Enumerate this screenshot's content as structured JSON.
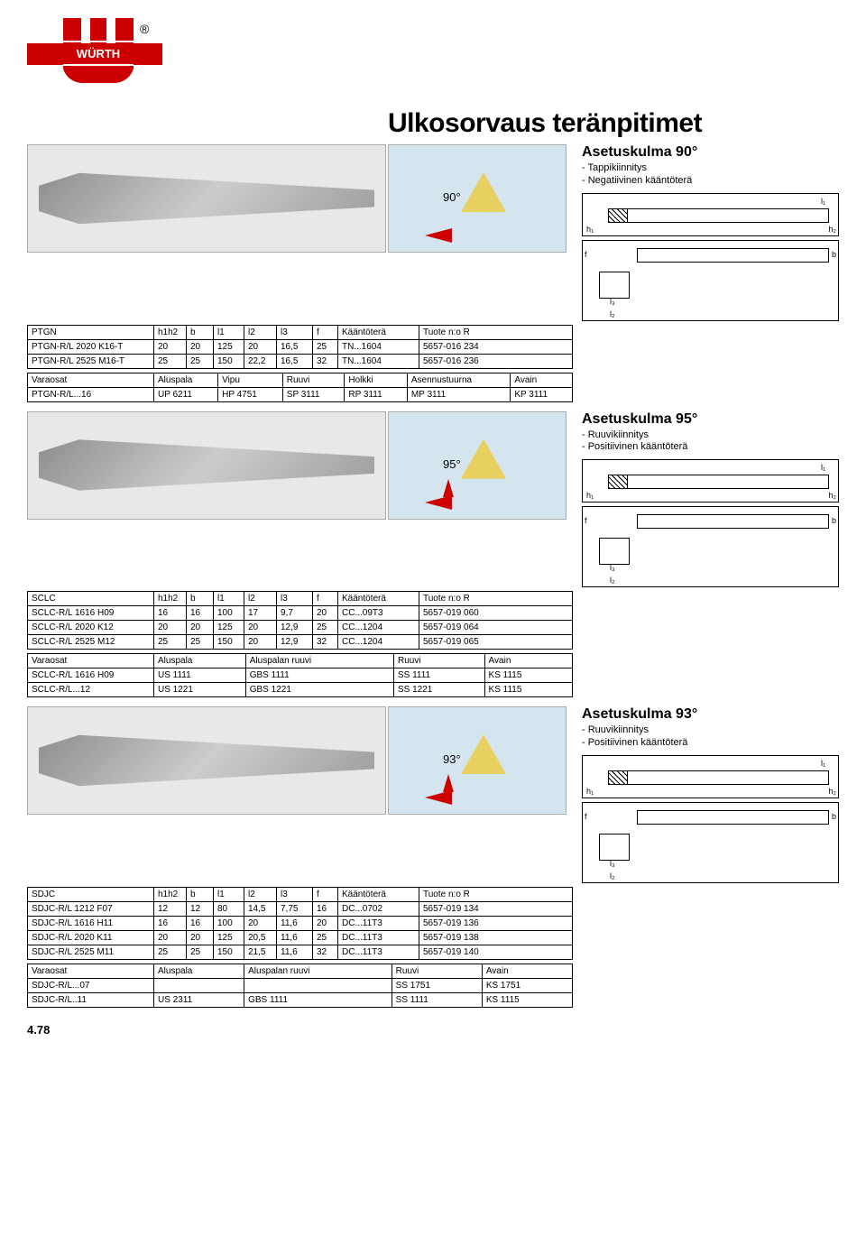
{
  "page_number": "4.78",
  "title": "Ulkosorvaus teränpitimet",
  "brand": "WÜRTH",
  "registered_mark": "®",
  "common_labels": {
    "l1": "l₁",
    "h1": "h₁",
    "h2": "h₂",
    "f": "f",
    "b": "b",
    "l3": "l₃",
    "l2": "l₂"
  },
  "sections": [
    {
      "heading": "Asetuskulma 90°",
      "bullets": [
        "- Tappikiinnitys",
        "- Negatiivinen kääntöterä"
      ],
      "angle_label": "90°",
      "main_headers": [
        "PTGN",
        "h1h2",
        "b",
        "l1",
        "l2",
        "l3",
        "f",
        "Kääntöterä",
        "Tuote n:o R"
      ],
      "main_rows": [
        [
          "PTGN-R/L 2020 K16-T",
          "20",
          "20",
          "125",
          "20",
          "16,5",
          "25",
          "TN...1604",
          "5657-016 234"
        ],
        [
          "PTGN-R/L 2525 M16-T",
          "25",
          "25",
          "150",
          "22,2",
          "16,5",
          "32",
          "TN...1604",
          "5657-016 236"
        ]
      ],
      "parts_headers": [
        "Varaosat",
        "Aluspala",
        "Vipu",
        "Ruuvi",
        "Holkki",
        "Asennustuurna",
        "Avain"
      ],
      "parts_rows": [
        [
          "PTGN-R/L...16",
          "UP 6211",
          "HP 4751",
          "SP 3111",
          "RP 3111",
          "MP 3111",
          "KP 3111"
        ]
      ]
    },
    {
      "heading": "Asetuskulma 95°",
      "bullets": [
        "- Ruuvikiinnitys",
        "- Positiivinen kääntöterä"
      ],
      "angle_label": "95°",
      "main_headers": [
        "SCLC",
        "h1h2",
        "b",
        "l1",
        "l2",
        "l3",
        "f",
        "Kääntöterä",
        "Tuote n:o R"
      ],
      "main_rows": [
        [
          "SCLC-R/L 1616 H09",
          "16",
          "16",
          "100",
          "17",
          "9,7",
          "20",
          "CC...09T3",
          "5657-019 060"
        ],
        [
          "SCLC-R/L 2020 K12",
          "20",
          "20",
          "125",
          "20",
          "12,9",
          "25",
          "CC...1204",
          "5657-019 064"
        ],
        [
          "SCLC-R/L 2525 M12",
          "25",
          "25",
          "150",
          "20",
          "12,9",
          "32",
          "CC...1204",
          "5657-019 065"
        ]
      ],
      "parts_headers": [
        "Varaosat",
        "Aluspala",
        "Aluspalan ruuvi",
        "Ruuvi",
        "Avain"
      ],
      "parts_rows": [
        [
          "SCLC-R/L 1616 H09",
          "US 1111",
          "GBS 1111",
          "SS 1111",
          "KS 1115"
        ],
        [
          "SCLC-R/L...12",
          "US 1221",
          "GBS 1221",
          "SS 1221",
          "KS 1115"
        ]
      ]
    },
    {
      "heading": "Asetuskulma 93°",
      "bullets": [
        "- Ruuvikiinnitys",
        "- Positiivinen kääntöterä"
      ],
      "angle_label": "93°",
      "main_headers": [
        "SDJC",
        "h1h2",
        "b",
        "l1",
        "l2",
        "l3",
        "f",
        "Kääntöterä",
        "Tuote n:o R"
      ],
      "main_rows": [
        [
          "SDJC-R/L 1212 F07",
          "12",
          "12",
          "80",
          "14,5",
          "7,75",
          "16",
          "DC...0702",
          "5657-019 134"
        ],
        [
          "SDJC-R/L 1616 H11",
          "16",
          "16",
          "100",
          "20",
          "11,6",
          "20",
          "DC...11T3",
          "5657-019 136"
        ],
        [
          "SDJC-R/L 2020 K11",
          "20",
          "20",
          "125",
          "20,5",
          "11,6",
          "25",
          "DC...11T3",
          "5657-019 138"
        ],
        [
          "SDJC-R/L 2525 M11",
          "25",
          "25",
          "150",
          "21,5",
          "11,6",
          "32",
          "DC...11T3",
          "5657-019 140"
        ]
      ],
      "parts_headers": [
        "Varaosat",
        "Aluspala",
        "Aluspalan ruuvi",
        "Ruuvi",
        "Avain"
      ],
      "parts_rows": [
        [
          "SDJC-R/L...07",
          "",
          "",
          "SS 1751",
          "KS 1751"
        ],
        [
          "SDJC-R/L..11",
          "US 2311",
          "GBS 1111",
          "SS 1111",
          "KS 1115"
        ]
      ]
    }
  ]
}
